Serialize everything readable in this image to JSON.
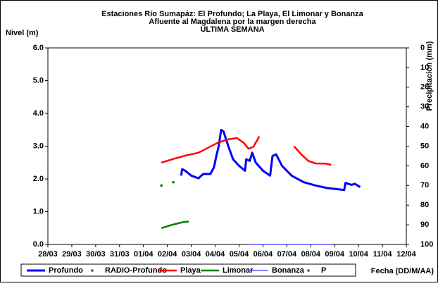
{
  "chart_data": {
    "type": "line",
    "title": [
      "Estaciones Río Sumapáz: El Profundo; La Playa, El Limonar y Bonanza",
      "Afluente al Magdalena por la margen derecha",
      "ULTIMA SEMANA"
    ],
    "y_label": "Nivel (m)",
    "y2_label": "Precipitacion (mm)",
    "x_label": "Fecha (DD/M/AA)",
    "xlim": [
      0,
      15
    ],
    "xticks": [
      {
        "value": 0,
        "label": "28/03"
      },
      {
        "value": 1,
        "label": "29/03"
      },
      {
        "value": 2,
        "label": "30/03"
      },
      {
        "value": 3,
        "label": "31/03"
      },
      {
        "value": 4,
        "label": "01/04"
      },
      {
        "value": 5,
        "label": "02/04"
      },
      {
        "value": 6,
        "label": "03/04"
      },
      {
        "value": 7,
        "label": "04/04"
      },
      {
        "value": 8,
        "label": "05/04"
      },
      {
        "value": 9,
        "label": "06/04"
      },
      {
        "value": 10,
        "label": "07/04"
      },
      {
        "value": 11,
        "label": "08/04"
      },
      {
        "value": 12,
        "label": "09/04"
      },
      {
        "value": 13,
        "label": "10/04"
      },
      {
        "value": 14,
        "label": "11/04"
      },
      {
        "value": 15,
        "label": "12/04"
      }
    ],
    "ylim": [
      0,
      6
    ],
    "yticks": [
      {
        "value": 0,
        "label": "0.0"
      },
      {
        "value": 1,
        "label": "1.0"
      },
      {
        "value": 2,
        "label": "2.0"
      },
      {
        "value": 3,
        "label": "3.0"
      },
      {
        "value": 4,
        "label": "4.0"
      },
      {
        "value": 5,
        "label": "5.0"
      },
      {
        "value": 6,
        "label": "6.0"
      }
    ],
    "y2lim": [
      0,
      100
    ],
    "y2_inverted": true,
    "y2ticks": [
      0,
      10,
      20,
      30,
      40,
      50,
      60,
      70,
      80,
      90,
      100
    ],
    "series": [
      {
        "name": "Profundo",
        "color": "#0000ff",
        "style": "line",
        "width": 3,
        "x": [
          5.58,
          5.62,
          5.75,
          6.0,
          6.3,
          6.5,
          6.8,
          6.95,
          7.05,
          7.15,
          7.25,
          7.35,
          7.55,
          7.75,
          8.0,
          8.25,
          8.3,
          8.45,
          8.55,
          8.7,
          9.0,
          9.3,
          9.4,
          9.55,
          9.8,
          10.2,
          10.7,
          11.2,
          11.7,
          12.2,
          12.4,
          12.45,
          12.7,
          12.85,
          13.07
        ],
        "values": [
          2.1,
          2.3,
          2.25,
          2.1,
          2.02,
          2.15,
          2.15,
          2.35,
          2.7,
          3.0,
          3.5,
          3.45,
          3.0,
          2.6,
          2.4,
          2.25,
          2.6,
          2.55,
          2.8,
          2.5,
          2.25,
          2.1,
          2.7,
          2.75,
          2.4,
          2.1,
          1.9,
          1.8,
          1.72,
          1.68,
          1.66,
          1.88,
          1.82,
          1.85,
          1.75
        ]
      },
      {
        "name": "RADIO-Profundo",
        "color": "#008000",
        "style": "dots",
        "x": [
          4.75,
          5.25
        ],
        "values": [
          1.8,
          1.9
        ]
      },
      {
        "name": "Playa",
        "color": "#ff0000",
        "style": "line",
        "width": 2.5,
        "x": [
          4.75,
          5.3,
          5.8,
          6.3,
          6.7,
          7.1,
          7.5,
          7.9,
          8.2,
          8.4,
          8.6,
          8.85,
          9.5,
          10.3,
          10.6,
          10.9,
          11.2,
          11.6,
          11.86
        ],
        "values": [
          2.5,
          2.62,
          2.72,
          2.8,
          2.95,
          3.1,
          3.2,
          3.25,
          3.1,
          2.92,
          2.98,
          3.3,
          null,
          3.0,
          2.75,
          2.55,
          2.47,
          2.47,
          2.43
        ]
      },
      {
        "name": "Limonar",
        "color": "#008000",
        "style": "line",
        "width": 2.5,
        "x": [
          4.75,
          5.2,
          5.6,
          5.9
        ],
        "values": [
          0.5,
          0.6,
          0.67,
          0.7
        ]
      },
      {
        "name": "Bonanza",
        "color": "#0000ff",
        "style": "line",
        "width": 1,
        "x": [
          8.4,
          11.85
        ],
        "values": [
          0,
          0
        ]
      },
      {
        "name": "P",
        "color": "#008000",
        "style": "dots",
        "axis": "y2",
        "x": [],
        "values": []
      }
    ]
  }
}
